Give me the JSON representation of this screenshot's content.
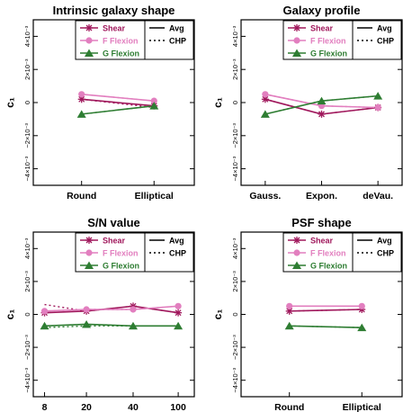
{
  "figure": {
    "ylabel": "c₁"
  },
  "y_ticks": [
    {
      "value": 0.004,
      "label": "4×10⁻³"
    },
    {
      "value": 0.002,
      "label": "2×10⁻³"
    },
    {
      "value": 0,
      "label": "0"
    },
    {
      "value": -0.002,
      "label": "−2×10⁻³"
    },
    {
      "value": -0.004,
      "label": "−4×10⁻³"
    }
  ],
  "legend": {
    "series": [
      "Shear",
      "F Flexion",
      "G Flexion"
    ],
    "styles": [
      "Avg",
      "CHP"
    ]
  },
  "colors": {
    "shear": "#a0185c",
    "f_flexion": "#e27fbf",
    "g_flexion": "#2e7d32",
    "avg": "#000000",
    "chp": "#000000"
  },
  "chart_data": [
    {
      "type": "line",
      "title": "Intrinsic galaxy shape",
      "categories": [
        "Round",
        "Elliptical"
      ],
      "ylim": [
        -0.005,
        0.005
      ],
      "series": [
        {
          "name": "Shear",
          "style": "Avg",
          "values": [
            0.0002,
            -0.0002
          ]
        },
        {
          "name": "F Flexion",
          "style": "Avg",
          "values": [
            0.0005,
            0.0001
          ]
        },
        {
          "name": "G Flexion",
          "style": "Avg",
          "values": [
            -0.0007,
            -0.0002
          ]
        },
        {
          "name": "Shear",
          "style": "CHP",
          "values": [
            0.0002,
            -0.0003
          ]
        },
        {
          "name": "F Flexion",
          "style": "CHP",
          "values": [
            0.0005,
            0.0001
          ]
        },
        {
          "name": "G Flexion",
          "style": "CHP",
          "values": [
            -0.0007,
            -0.0002
          ]
        }
      ]
    },
    {
      "type": "line",
      "title": "Galaxy profile",
      "categories": [
        "Gauss.",
        "Expon.",
        "deVau."
      ],
      "ylim": [
        -0.005,
        0.005
      ],
      "series": [
        {
          "name": "Shear",
          "style": "Avg",
          "values": [
            0.0002,
            -0.0007,
            -0.0003
          ]
        },
        {
          "name": "F Flexion",
          "style": "Avg",
          "values": [
            0.0005,
            -0.0002,
            -0.0003
          ]
        },
        {
          "name": "G Flexion",
          "style": "Avg",
          "values": [
            -0.0007,
            0.0001,
            0.0004
          ]
        },
        {
          "name": "Shear",
          "style": "CHP",
          "values": [
            0.0002,
            -0.0007,
            -0.0003
          ]
        },
        {
          "name": "F Flexion",
          "style": "CHP",
          "values": [
            0.0005,
            -0.0002,
            -0.0003
          ]
        },
        {
          "name": "G Flexion",
          "style": "CHP",
          "values": [
            -0.0007,
            0.0001,
            0.0004
          ]
        }
      ]
    },
    {
      "type": "line",
      "title": "S/N value",
      "categories": [
        "8",
        "20",
        "40",
        "100"
      ],
      "ylim": [
        -0.005,
        0.005
      ],
      "series": [
        {
          "name": "Shear",
          "style": "Avg",
          "values": [
            0.0001,
            0.0002,
            0.0005,
            0.0001
          ]
        },
        {
          "name": "F Flexion",
          "style": "Avg",
          "values": [
            0.0002,
            0.0003,
            0.0003,
            0.0005
          ]
        },
        {
          "name": "G Flexion",
          "style": "Avg",
          "values": [
            -0.0007,
            -0.0006,
            -0.0007,
            -0.0007
          ]
        },
        {
          "name": "Shear",
          "style": "CHP",
          "values": [
            0.0006,
            0.0002,
            0.0005,
            0.0001
          ]
        },
        {
          "name": "F Flexion",
          "style": "CHP",
          "values": [
            0.0002,
            0.0003,
            0.0003,
            0.0005
          ]
        },
        {
          "name": "G Flexion",
          "style": "CHP",
          "values": [
            -0.0008,
            -0.0007,
            -0.0007,
            -0.0007
          ]
        }
      ]
    },
    {
      "type": "line",
      "title": "PSF shape",
      "categories": [
        "Round",
        "Elliptical"
      ],
      "ylim": [
        -0.005,
        0.005
      ],
      "series": [
        {
          "name": "Shear",
          "style": "Avg",
          "values": [
            0.0002,
            0.0003
          ]
        },
        {
          "name": "F Flexion",
          "style": "Avg",
          "values": [
            0.0005,
            0.0005
          ]
        },
        {
          "name": "G Flexion",
          "style": "Avg",
          "values": [
            -0.0007,
            -0.0008
          ]
        },
        {
          "name": "Shear",
          "style": "CHP",
          "values": [
            0.0002,
            0.0003
          ]
        },
        {
          "name": "F Flexion",
          "style": "CHP",
          "values": [
            0.0005,
            0.0005
          ]
        },
        {
          "name": "G Flexion",
          "style": "CHP",
          "values": [
            -0.0007,
            -0.0008
          ]
        }
      ]
    }
  ]
}
